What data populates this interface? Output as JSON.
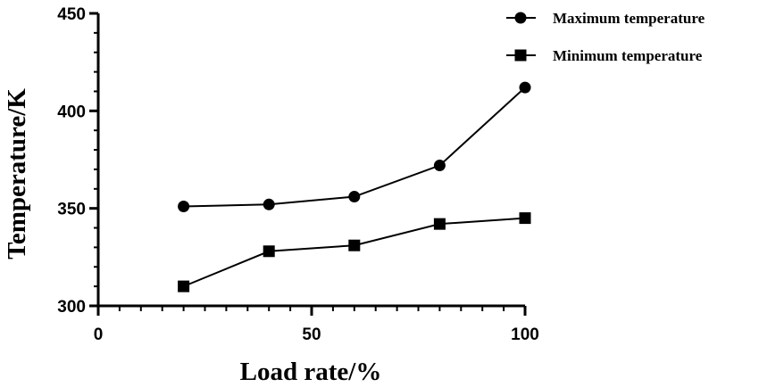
{
  "chart_data": {
    "type": "line",
    "title": "",
    "xlabel": "Load rate/%",
    "ylabel": "Temperature/K",
    "xlim": [
      0,
      100
    ],
    "ylim": [
      300,
      450
    ],
    "x_ticks": [
      0,
      50,
      100
    ],
    "y_ticks": [
      300,
      350,
      400,
      450
    ],
    "grid": false,
    "legend_position": "top-right",
    "x": [
      20,
      40,
      60,
      80,
      100
    ],
    "series": [
      {
        "name": "Maximum temperature",
        "marker": "circle",
        "values": [
          351,
          352,
          356,
          372,
          412
        ]
      },
      {
        "name": "Minimum temperature",
        "marker": "square",
        "values": [
          310,
          328,
          331,
          342,
          345
        ]
      }
    ],
    "colors": {
      "line": "#000000",
      "marker": "#000000"
    }
  }
}
